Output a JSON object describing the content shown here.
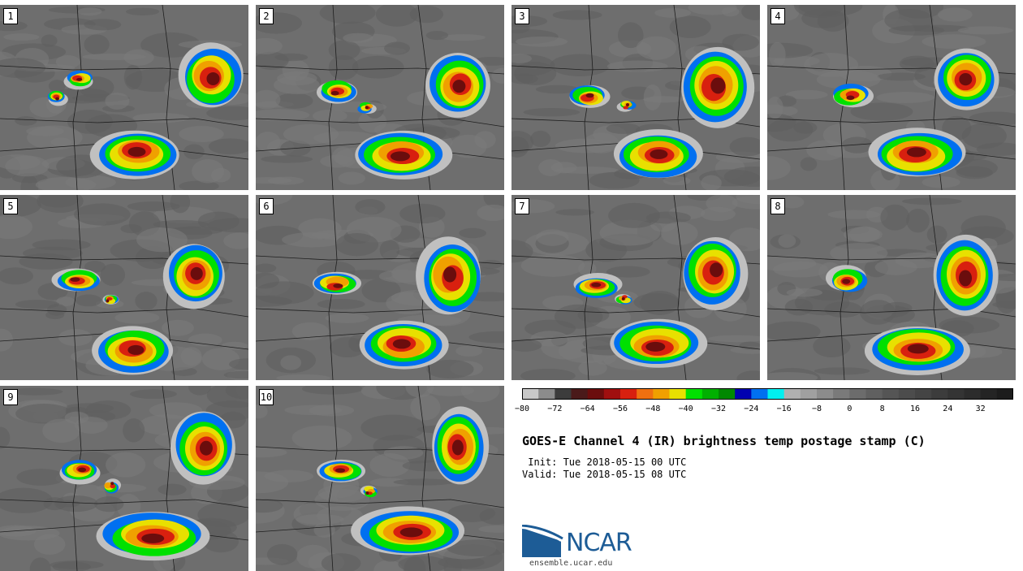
{
  "panels": [
    {
      "label": "1"
    },
    {
      "label": "2"
    },
    {
      "label": "3"
    },
    {
      "label": "4"
    },
    {
      "label": "5"
    },
    {
      "label": "6"
    },
    {
      "label": "7"
    },
    {
      "label": "8"
    },
    {
      "label": "9"
    },
    {
      "label": "10"
    }
  ],
  "colorbar": {
    "colors": [
      "#c8c8c8",
      "#8c8c8c",
      "#3c3c3c",
      "#4a1a1a",
      "#6b0d0d",
      "#a00f0f",
      "#d8200f",
      "#f07010",
      "#f0a000",
      "#e8e000",
      "#00e000",
      "#00b000",
      "#008800",
      "#0000b0",
      "#0070f0",
      "#00f0f0",
      "#b0b0b0",
      "#a0a0a0",
      "#8c8c8c",
      "#7a7a7a",
      "#6c6c6c",
      "#606060",
      "#555555",
      "#4c4c4c",
      "#444444",
      "#3c3c3c",
      "#343434",
      "#2c2c2c",
      "#242424",
      "#1c1c1c"
    ],
    "tick_labels": [
      "−80",
      "−72",
      "−64",
      "−56",
      "−48",
      "−40",
      "−32",
      "−24",
      "−16",
      "−8",
      "0",
      "8",
      "16",
      "24",
      "32"
    ],
    "min": -80,
    "max": 40,
    "step": 4
  },
  "title": "GOES-E Channel 4 (IR) brightness temp postage stamp (C)",
  "init": " Init: Tue 2018-05-15 00 UTC",
  "valid": "Valid: Tue 2018-05-15 08 UTC",
  "logo_text": "NCAR",
  "site": "ensemble.ucar.edu"
}
